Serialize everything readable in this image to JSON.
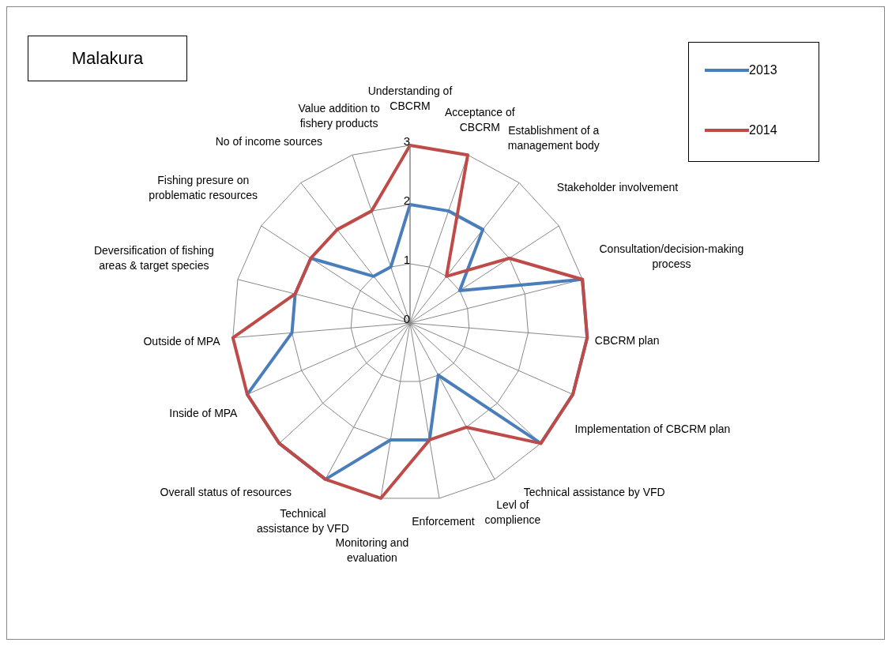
{
  "chart_data": {
    "type": "radar",
    "title": "Malakura",
    "categories": [
      "Understanding of CBCRM",
      "Acceptance of CBCRM",
      "Establishment  of a management body",
      "Stakeholder involvement",
      "Consultation/decision-making process",
      "CBCRM plan",
      "Implementation of CBCRM plan",
      "Technical assistance by VFD",
      "Levl of complience",
      "Enforcement",
      "Monitoring and evaluation",
      "Technical assistance by VFD",
      "Overall status of resources",
      "Inside of MPA",
      "Outside of MPA",
      "Deversification of fishing areas & target species",
      "Fishing presure on problematic resources",
      "No of income sources",
      "Value addition to fishery products"
    ],
    "series": [
      {
        "name": "2013",
        "color": "#4a7ebb",
        "values": [
          2,
          2,
          2,
          1,
          3,
          3,
          3,
          3,
          1,
          2,
          2,
          3,
          3,
          3,
          2,
          2,
          2,
          1,
          1
        ]
      },
      {
        "name": "2014",
        "color": "#be4b48",
        "values": [
          3,
          3,
          1,
          2,
          3,
          3,
          3,
          3,
          2,
          2,
          3,
          3,
          3,
          3,
          3,
          2,
          2,
          2,
          2
        ]
      }
    ],
    "ylim": [
      0,
      3
    ],
    "yticks": [
      0,
      1,
      2,
      3
    ],
    "grid": true,
    "legend": "top right",
    "marker": "none"
  }
}
